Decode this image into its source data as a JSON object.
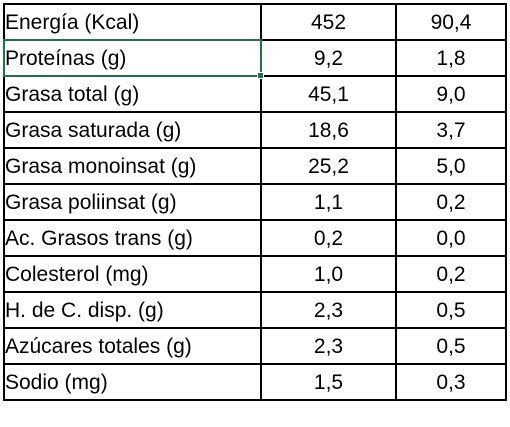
{
  "table": {
    "rows": [
      {
        "name": "Energía (Kcal)",
        "a": "452",
        "b": "90,4"
      },
      {
        "name": "Proteínas (g)",
        "a": "9,2",
        "b": "1,8"
      },
      {
        "name": "Grasa total (g)",
        "a": "45,1",
        "b": "9,0"
      },
      {
        "name": "Grasa saturada (g)",
        "a": "18,6",
        "b": "3,7"
      },
      {
        "name": "Grasa monoinsat (g)",
        "a": "25,2",
        "b": "5,0"
      },
      {
        "name": "Grasa poliinsat (g)",
        "a": "1,1",
        "b": "0,2"
      },
      {
        "name": "Ac. Grasos trans (g)",
        "a": "0,2",
        "b": "0,0"
      },
      {
        "name": "Colesterol (mg)",
        "a": "1,0",
        "b": "0,2"
      },
      {
        "name": "H. de C. disp. (g)",
        "a": "2,3",
        "b": "0,5"
      },
      {
        "name": "Azúcares totales (g)",
        "a": "2,3",
        "b": "0,5"
      },
      {
        "name": "Sodio (mg)",
        "a": "1,5",
        "b": "0,3"
      }
    ],
    "selected_row": 1
  },
  "colors": {
    "selection": "#217346",
    "border": "#000000",
    "text": "#000000"
  }
}
